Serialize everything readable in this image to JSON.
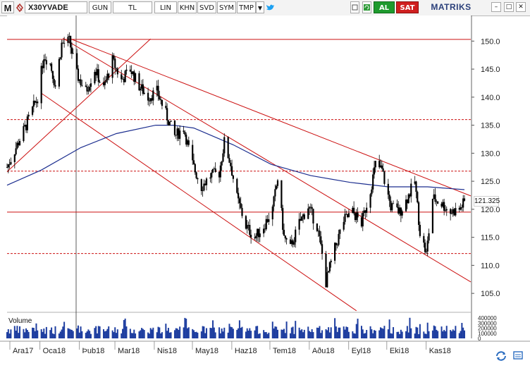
{
  "toolbar": {
    "logo": "M",
    "symbol": "X30YVADE",
    "period": "GUN",
    "currency": "TL",
    "scale": "LIN",
    "khn": "KHN",
    "svd": "SVD",
    "sym": "SYM",
    "tmp": "TMP",
    "dropdown_glyph": "▼",
    "twitter_glyph": "🐦",
    "buy_label": "AL",
    "sell_label": "SAT",
    "brand": "MATRIKS",
    "win_min": "–",
    "win_max": "□",
    "win_close": "✕"
  },
  "colors": {
    "candle": "#000000",
    "trendline": "#cc1010",
    "hline": "#cc1010",
    "moving_average": "#1c2e8f",
    "volume": "#1e3ea0",
    "grid_axis": "#777777"
  },
  "current_price_label": "121.325",
  "volume_panel": {
    "label": "Volume",
    "ticks": [
      "400000",
      "300000",
      "200000",
      "100000",
      "0"
    ]
  },
  "chart_data": {
    "type": "candlestick",
    "title": "X30YVADE",
    "xlabel": "",
    "ylabel": "",
    "x_tick_labels": [
      "Ara17",
      "Oca18",
      "Þub18",
      "Mar18",
      "Nis18",
      "May18",
      "Haz18",
      "Tem18",
      "Aðu18",
      "Eyl18",
      "Eki18",
      "Kas18"
    ],
    "y_ticks": [
      105,
      110,
      115,
      120,
      125,
      130,
      135,
      140,
      145,
      150
    ],
    "ylim": [
      102,
      152.3
    ],
    "grid": false,
    "last_price": 121.325,
    "horizontal_levels": [
      {
        "value": 150.3,
        "style": "solid"
      },
      {
        "value": 136.0,
        "style": "dashed"
      },
      {
        "value": 126.8,
        "style": "dashed"
      },
      {
        "value": 119.5,
        "style": "solid"
      },
      {
        "value": 112.1,
        "style": "dashed"
      }
    ],
    "trend_lines": [
      {
        "from": [
          "2017-12-05",
          126.7
        ],
        "to": [
          "2018-03-28",
          150.4
        ]
      },
      {
        "from": [
          "2018-01-24",
          150.4
        ],
        "to": [
          "2018-12-06",
          122.3
        ]
      },
      {
        "from": [
          "2018-01-18",
          150.5
        ],
        "to": [
          "2018-12-06",
          106.9
        ]
      },
      {
        "from": [
          "2018-01-01",
          140.7
        ],
        "to": [
          "2018-09-06",
          101.9
        ]
      }
    ],
    "close_anchors": [
      [
        "2017-12-05",
        127.5
      ],
      [
        "2017-12-12",
        131.0
      ],
      [
        "2017-12-20",
        135.0
      ],
      [
        "2017-12-29",
        140.0
      ],
      [
        "2018-01-03",
        147.5
      ],
      [
        "2018-01-08",
        146.0
      ],
      [
        "2018-01-12",
        142.0
      ],
      [
        "2018-01-17",
        149.5
      ],
      [
        "2018-01-23",
        150.0
      ],
      [
        "2018-01-29",
        144.0
      ],
      [
        "2018-02-05",
        141.0
      ],
      [
        "2018-02-12",
        145.0
      ],
      [
        "2018-02-19",
        141.5
      ],
      [
        "2018-02-26",
        146.5
      ],
      [
        "2018-03-05",
        143.0
      ],
      [
        "2018-03-12",
        145.0
      ],
      [
        "2018-03-19",
        142.0
      ],
      [
        "2018-03-26",
        140.0
      ],
      [
        "2018-04-02",
        141.0
      ],
      [
        "2018-04-09",
        137.0
      ],
      [
        "2018-04-16",
        133.0
      ],
      [
        "2018-04-23",
        134.5
      ],
      [
        "2018-04-30",
        128.0
      ],
      [
        "2018-05-07",
        124.0
      ],
      [
        "2018-05-14",
        126.0
      ],
      [
        "2018-05-21",
        126.5
      ],
      [
        "2018-05-25",
        132.0
      ],
      [
        "2018-05-30",
        128.0
      ],
      [
        "2018-06-04",
        122.0
      ],
      [
        "2018-06-11",
        117.0
      ],
      [
        "2018-06-18",
        115.0
      ],
      [
        "2018-06-25",
        117.0
      ],
      [
        "2018-07-02",
        120.0
      ],
      [
        "2018-07-06",
        125.5
      ],
      [
        "2018-07-11",
        115.0
      ],
      [
        "2018-07-16",
        113.0
      ],
      [
        "2018-07-23",
        117.5
      ],
      [
        "2018-07-30",
        120.5
      ],
      [
        "2018-08-06",
        117.0
      ],
      [
        "2018-08-10",
        112.0
      ],
      [
        "2018-08-13",
        107.0
      ],
      [
        "2018-08-20",
        113.0
      ],
      [
        "2018-08-27",
        118.0
      ],
      [
        "2018-09-03",
        119.5
      ],
      [
        "2018-09-10",
        117.5
      ],
      [
        "2018-09-17",
        123.5
      ],
      [
        "2018-09-21",
        128.0
      ],
      [
        "2018-09-26",
        127.0
      ],
      [
        "2018-10-03",
        120.5
      ],
      [
        "2018-10-10",
        119.5
      ],
      [
        "2018-10-15",
        121.5
      ],
      [
        "2018-10-22",
        125.0
      ],
      [
        "2018-10-26",
        116.0
      ],
      [
        "2018-10-31",
        112.0
      ],
      [
        "2018-11-05",
        122.0
      ],
      [
        "2018-11-12",
        121.0
      ],
      [
        "2018-11-19",
        119.5
      ],
      [
        "2018-11-26",
        120.0
      ],
      [
        "2018-11-30",
        121.3
      ]
    ],
    "moving_average": [
      [
        "2017-12-05",
        124.3
      ],
      [
        "2018-01-01",
        127.0
      ],
      [
        "2018-02-01",
        131.0
      ],
      [
        "2018-03-01",
        133.5
      ],
      [
        "2018-04-01",
        135.0
      ],
      [
        "2018-04-15",
        135.0
      ],
      [
        "2018-05-01",
        134.5
      ],
      [
        "2018-06-01",
        131.5
      ],
      [
        "2018-07-01",
        128.0
      ],
      [
        "2018-08-01",
        126.0
      ],
      [
        "2018-09-01",
        124.8
      ],
      [
        "2018-10-01",
        124.0
      ],
      [
        "2018-11-01",
        124.0
      ],
      [
        "2018-11-30",
        123.5
      ]
    ]
  }
}
